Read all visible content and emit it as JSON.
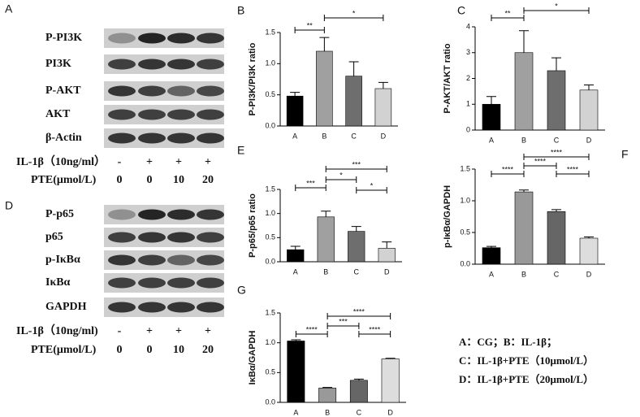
{
  "blots": [
    {
      "panel": "A",
      "proteins": [
        "P-PI3K",
        "PI3K",
        "P-AKT",
        "AKT",
        "β-Actin"
      ],
      "treatments": [
        {
          "label": "IL-1β（10ng/ml）",
          "levels": [
            "-",
            "+",
            "+",
            "+"
          ]
        },
        {
          "label": "PTE(μmol/L)",
          "levels": [
            0,
            0,
            10,
            20
          ]
        }
      ]
    },
    {
      "panel": "D",
      "proteins": [
        "P-p65",
        "p65",
        "p-IκBα",
        "IκBα",
        "GAPDH"
      ],
      "treatments": [
        {
          "label": "IL-1β（10ng/ml)",
          "levels": [
            "-",
            "+",
            "+",
            "+"
          ]
        },
        {
          "label": "PTE(μmol/L)",
          "levels": [
            0,
            0,
            10,
            20
          ]
        }
      ]
    }
  ],
  "legend": [
    "A：CG；B：IL-1β；",
    "C：IL-1β+PTE（10μmol/L）",
    "D：IL-1β+PTE（20μmol/L）"
  ],
  "chart_data": [
    {
      "type": "bar",
      "panel": "B",
      "ylabel": "P-PI3K/PI3K ratio",
      "categories": [
        "A",
        "B",
        "C",
        "D"
      ],
      "values": [
        0.48,
        1.2,
        0.8,
        0.6
      ],
      "errors": [
        0.06,
        0.22,
        0.23,
        0.1
      ],
      "colors": [
        "#000000",
        "#a0a0a0",
        "#6e6e6e",
        "#d2d2d2"
      ],
      "ylim": [
        0,
        1.5
      ],
      "yticks": [
        {
          "value": 0,
          "label": "0.0"
        },
        0.5,
        {
          "value": 1,
          "label": "1.0"
        },
        1.5
      ],
      "annotations": [
        "**",
        "*"
      ]
    },
    {
      "type": "bar",
      "panel": "C",
      "ylabel": "P-AKT/AKT ratio",
      "categories": [
        "A",
        "B",
        "C",
        "D"
      ],
      "values": [
        1.0,
        3.0,
        2.3,
        1.55
      ],
      "errors": [
        0.3,
        0.85,
        0.5,
        0.2
      ],
      "colors": [
        "#000000",
        "#a0a0a0",
        "#6e6e6e",
        "#d2d2d2"
      ],
      "ylim": [
        0,
        4
      ],
      "yticks": [
        0,
        1,
        2,
        3,
        4
      ],
      "annotations": [
        "**",
        "*"
      ]
    },
    {
      "type": "bar",
      "panel": "E",
      "ylabel": "P-p65/p65 ratio",
      "categories": [
        "A",
        "B",
        "C",
        "D"
      ],
      "values": [
        0.25,
        0.93,
        0.63,
        0.28
      ],
      "errors": [
        0.07,
        0.12,
        0.1,
        0.13
      ],
      "colors": [
        "#000000",
        "#a0a0a0",
        "#6e6e6e",
        "#d2d2d2"
      ],
      "ylim": [
        0,
        1.5
      ],
      "yticks": [
        {
          "value": 0,
          "label": "0.0"
        },
        0.5,
        {
          "value": 1,
          "label": "1.0"
        },
        1.5
      ],
      "annotations": [
        "***",
        "*",
        "***",
        "*"
      ]
    },
    {
      "type": "bar",
      "panel": "F",
      "ylabel": "p-IκBα/GAPDH",
      "categories": [
        "A",
        "B",
        "C",
        "D"
      ],
      "values": [
        0.26,
        1.14,
        0.83,
        0.41
      ],
      "errors": [
        0.02,
        0.03,
        0.03,
        0.02
      ],
      "colors": [
        "#000000",
        "#999999",
        "#666666",
        "#dddddd"
      ],
      "ylim": [
        0,
        1.5
      ],
      "yticks": [
        {
          "value": 0,
          "label": "0.0"
        },
        0.5,
        {
          "value": 1,
          "label": "1.0"
        },
        1.5
      ],
      "annotations": [
        "****",
        "****",
        "****",
        "****"
      ]
    },
    {
      "type": "bar",
      "panel": "G",
      "ylabel": "IκBα/GAPDH",
      "categories": [
        "A",
        "B",
        "C",
        "D"
      ],
      "values": [
        1.03,
        0.24,
        0.37,
        0.73
      ],
      "errors": [
        0.02,
        0.01,
        0.02,
        0.01
      ],
      "colors": [
        "#000000",
        "#999999",
        "#666666",
        "#dddddd"
      ],
      "ylim": [
        0,
        1.5
      ],
      "yticks": [
        {
          "value": 0,
          "label": "0.0"
        },
        0.5,
        {
          "value": 1,
          "label": "1.0"
        },
        1.5
      ],
      "annotations": [
        "****",
        "***",
        "****",
        "****"
      ]
    }
  ]
}
